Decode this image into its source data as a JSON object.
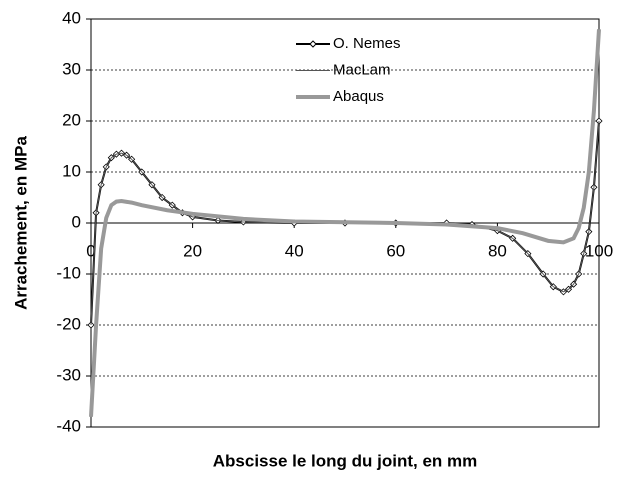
{
  "chart_data": {
    "type": "line",
    "x_label": "Abscisse le long du joint, en mm",
    "y_label": "Arrachement, en MPa",
    "xlim": [
      0,
      100
    ],
    "xticks": [
      0,
      20,
      40,
      60,
      80,
      100
    ],
    "ylim": [
      -40,
      40
    ],
    "yticks": [
      -40,
      -30,
      -20,
      -10,
      0,
      10,
      20,
      30,
      40
    ],
    "grid": true,
    "legend": "top",
    "series": [
      {
        "name": "O. Nemes",
        "color": "#000000",
        "markers": true,
        "x": [
          0,
          1,
          2,
          3,
          4,
          5,
          6,
          7,
          8,
          10,
          12,
          14,
          16,
          18,
          20,
          25,
          30,
          40,
          50,
          60,
          70,
          75,
          80,
          83,
          86,
          89,
          91,
          93,
          94,
          95,
          96,
          97,
          98,
          99,
          100
        ],
        "values": [
          -20,
          2,
          7.5,
          11,
          12.8,
          13.5,
          13.7,
          13.3,
          12.5,
          10,
          7.5,
          5,
          3.5,
          2,
          1.2,
          0.5,
          0.2,
          0,
          0,
          0,
          0,
          -0.3,
          -1.5,
          -3,
          -6,
          -10,
          -12.5,
          -13.5,
          -13,
          -12,
          -10,
          -6,
          -1.7,
          7,
          20
        ]
      },
      {
        "name": "MacLam",
        "color": "#555555",
        "markers": false,
        "x": [
          0,
          1,
          2,
          3,
          4,
          5,
          6,
          7,
          8,
          10,
          12,
          14,
          16,
          18,
          20,
          25,
          30,
          40,
          50,
          60,
          70,
          75,
          80,
          83,
          86,
          89,
          91,
          93,
          94,
          95,
          96,
          97,
          98,
          99,
          100
        ],
        "values": [
          -20,
          2,
          7.5,
          11,
          12.8,
          13.5,
          13.7,
          13.3,
          12.5,
          10,
          7.5,
          5,
          3.5,
          2,
          1.2,
          0.5,
          0.2,
          0,
          0,
          0,
          0,
          -0.3,
          -1.5,
          -3,
          -6,
          -10,
          -12.5,
          -13.5,
          -13,
          -12,
          -10,
          -6,
          -1.7,
          7,
          20
        ]
      },
      {
        "name": "Abaqus",
        "color": "#999999",
        "markers": false,
        "x": [
          0,
          1,
          2,
          3,
          4,
          5,
          6,
          8,
          10,
          15,
          20,
          30,
          40,
          60,
          70,
          80,
          85,
          90,
          93,
          95,
          96,
          97,
          98,
          99,
          100
        ],
        "values": [
          -38,
          -20,
          -5,
          1,
          3.5,
          4.2,
          4.3,
          4,
          3.5,
          2.5,
          1.8,
          0.8,
          0.3,
          0,
          -0.3,
          -1,
          -2,
          -3.5,
          -3.8,
          -3,
          -1,
          3,
          10,
          22,
          38
        ]
      }
    ]
  }
}
